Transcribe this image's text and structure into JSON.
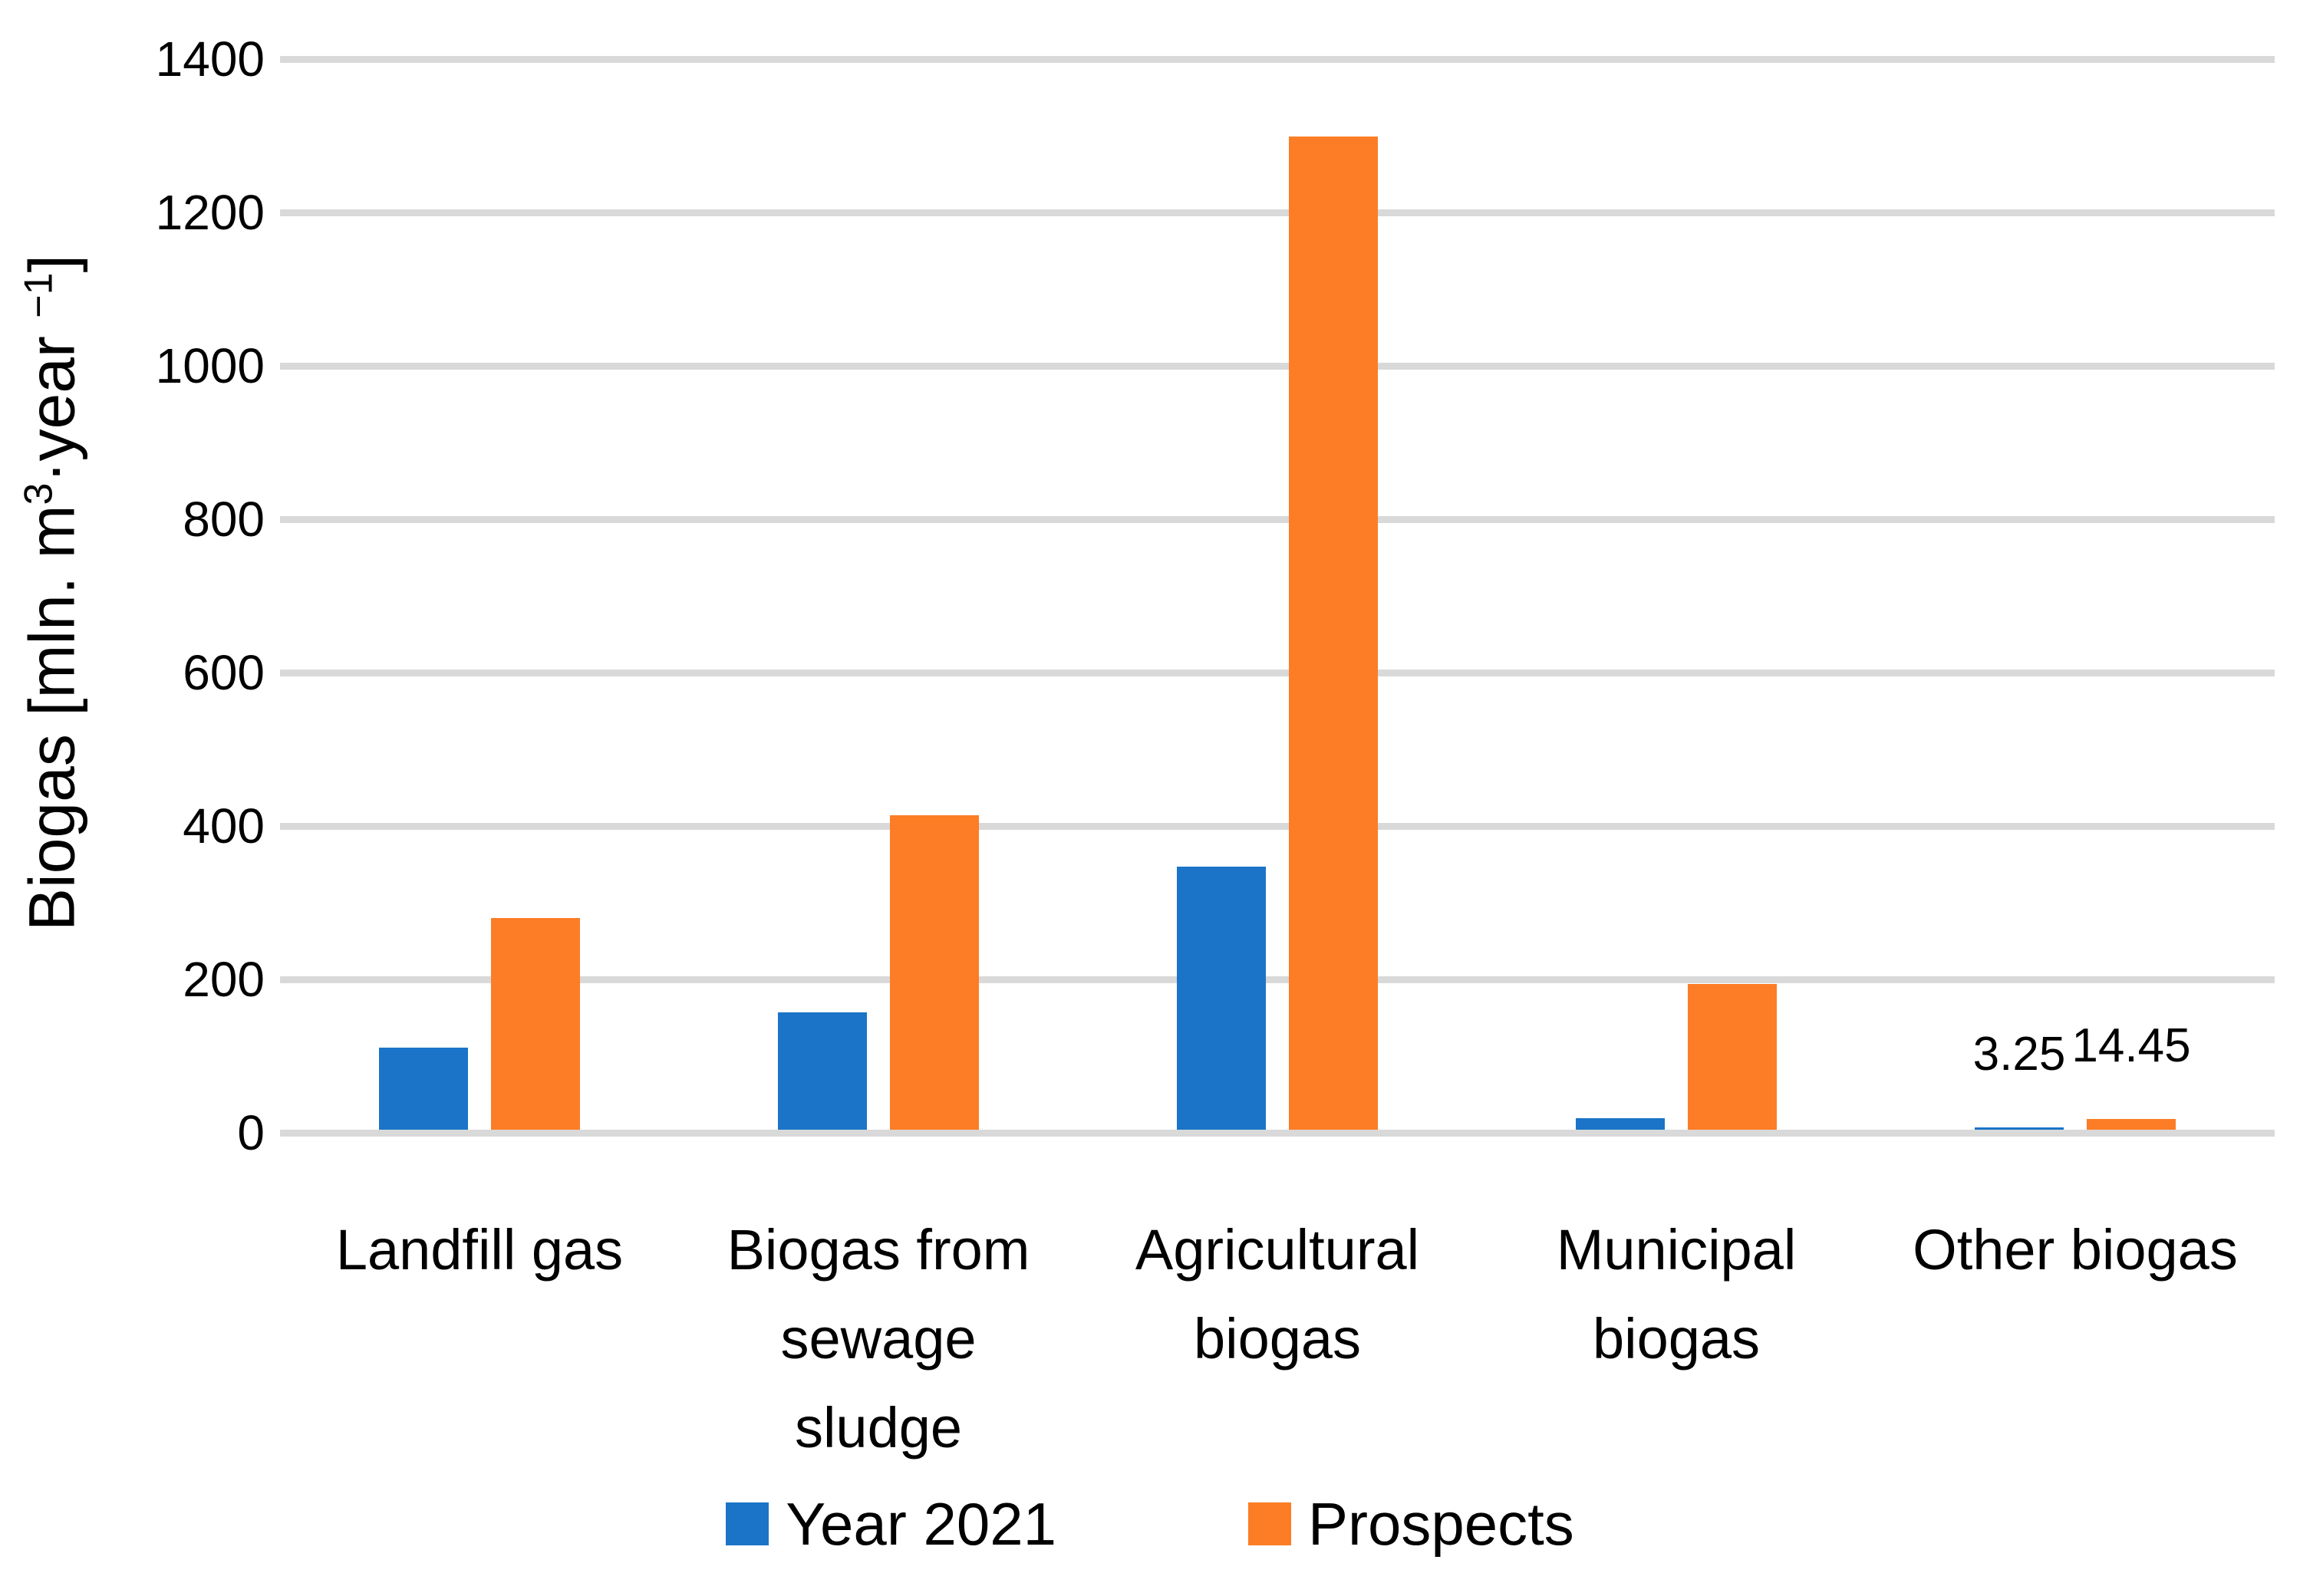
{
  "chart_data": {
    "type": "bar",
    "title": "",
    "xlabel": "",
    "ylabel": "Biogas [mln. m³·year ⁻¹]",
    "ylabel_parts": [
      {
        "t": "Biogas [mln. m"
      },
      {
        "sup": "3"
      },
      {
        "t": "·year "
      },
      {
        "sup": "−1"
      },
      {
        "t": "]"
      }
    ],
    "ylim": [
      0,
      1400
    ],
    "yticks": [
      0,
      200,
      400,
      600,
      800,
      1000,
      1200,
      1400
    ],
    "grid": "horizontal",
    "background_color": "#FFFFFF",
    "gridline_color": "#D9D9D9",
    "text_color": "#000000",
    "legend_position": "bottom",
    "categories": [
      "Landfill gas",
      "Biogas from sewage sludge",
      "Agricultural biogas",
      "Municipal biogas",
      "Other biogas"
    ],
    "categories_lines": [
      [
        "Landfill gas"
      ],
      [
        "Biogas from",
        "sewage",
        "sludge"
      ],
      [
        "Agricultural",
        "biogas"
      ],
      [
        "Municipal",
        "biogas"
      ],
      [
        "Other biogas"
      ]
    ],
    "series": [
      {
        "name": "Year 2021",
        "color": "#1B74C8",
        "values": [
          107,
          153,
          343,
          15,
          3.25
        ],
        "point_labels": [
          null,
          null,
          null,
          null,
          "3.25"
        ]
      },
      {
        "name": "Prospects",
        "color": "#FC7D26",
        "values": [
          276,
          410,
          1295,
          190,
          14.45
        ],
        "point_labels": [
          null,
          null,
          null,
          null,
          "14.45"
        ]
      }
    ],
    "legend_items": [
      "Year 2021",
      "Prospects"
    ]
  }
}
